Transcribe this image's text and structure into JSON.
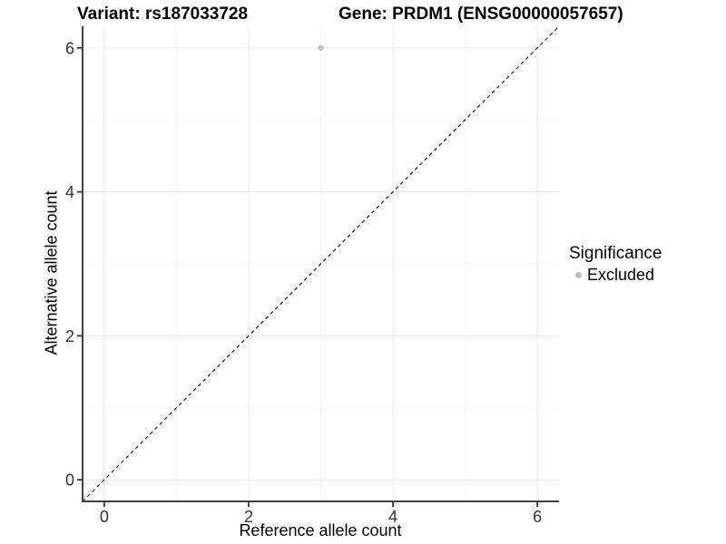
{
  "chart_data": {
    "type": "scatter",
    "title_left": "Variant: rs187033728",
    "title_right": "Gene: PRDM1 (ENSG00000057657)",
    "xlabel": "Reference allele count",
    "ylabel": "Alternative allele count",
    "xlim": [
      -0.3,
      6.3
    ],
    "ylim": [
      -0.3,
      6.3
    ],
    "x_ticks": [
      0,
      2,
      4,
      6
    ],
    "y_ticks": [
      0,
      2,
      4,
      6
    ],
    "x_minor_gridlines": [
      1,
      3,
      5
    ],
    "y_minor_gridlines": [
      1,
      3,
      5
    ],
    "grid": true,
    "points": [
      {
        "x": 3,
        "y": 6,
        "series": "Excluded"
      }
    ],
    "identity_line": {
      "equation": "y = x",
      "style": "dashed"
    },
    "legend": {
      "title": "Significance",
      "position": "right",
      "items": [
        {
          "label": "Excluded",
          "color": "#bebebe",
          "marker": "circle"
        }
      ]
    }
  },
  "theme": {
    "background": "#ffffff",
    "grid_major": "#ebebeb",
    "grid_minor": "#f5f5f5",
    "axis_line": "#404040",
    "tick_color": "#333333",
    "tick_label_color": "#333333",
    "text_color": "#000000",
    "point_color": "#bebebe",
    "dash_color": "#1a1a1a"
  }
}
